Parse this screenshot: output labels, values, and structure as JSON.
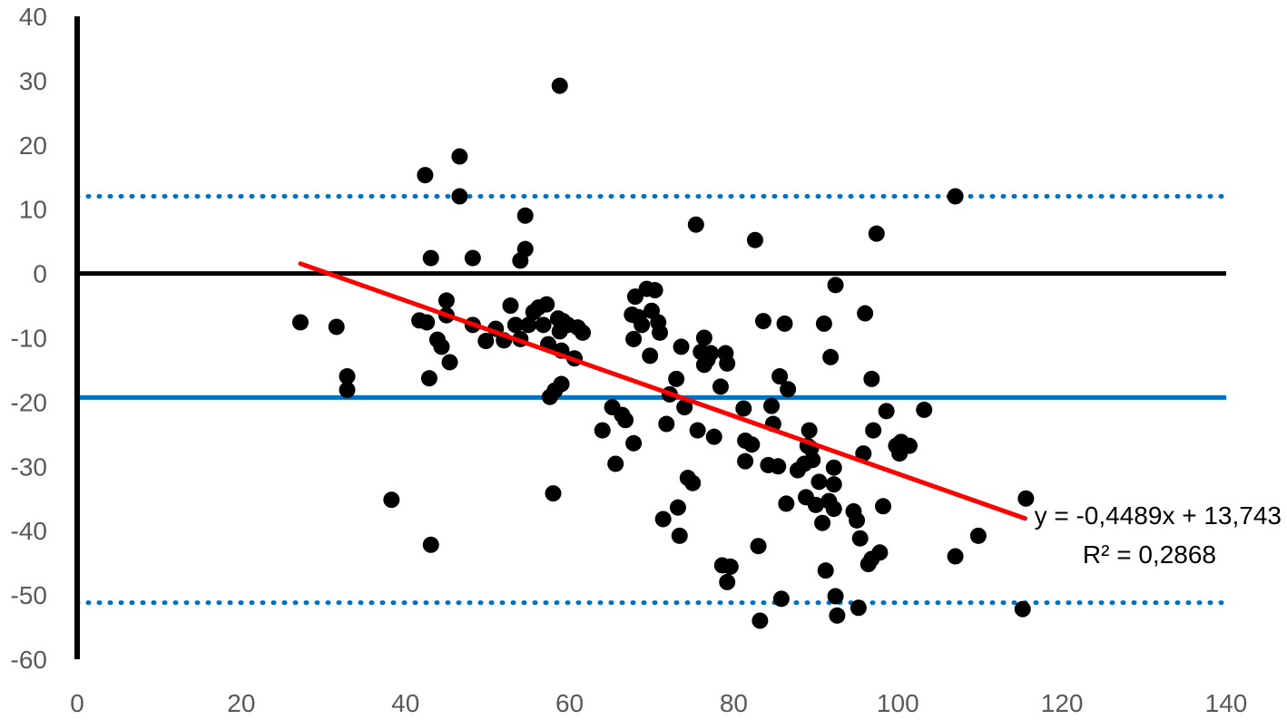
{
  "chart_data": {
    "type": "scatter",
    "title": "",
    "xlabel": "",
    "ylabel": "",
    "xlim": [
      0,
      140
    ],
    "ylim": [
      -60,
      40
    ],
    "xticks": [
      0,
      20,
      40,
      60,
      80,
      100,
      120,
      140
    ],
    "yticks": [
      40,
      30,
      20,
      10,
      0,
      -10,
      -20,
      -30,
      -40,
      -50,
      -60
    ],
    "grid": false,
    "legend": "none",
    "colors": {
      "points": "#000000",
      "trend": "#ff0000",
      "mean_line": "#0070c0",
      "limit_lines": "#0070c0",
      "zero_line": "#000000",
      "tick_text": "#595959"
    },
    "reference_lines": {
      "zero": 0,
      "mean": -19.3,
      "upper_limit": 12,
      "lower_limit": -51.2
    },
    "trendline": {
      "slope": -0.4489,
      "intercept": 13.743,
      "x_range": [
        27.2,
        115.5
      ],
      "equation_label": "y = -0,4489x + 13,743",
      "r2_label": "R² = 0,2868"
    },
    "points": [
      [
        27.2,
        -7.6
      ],
      [
        31.6,
        -8.3
      ],
      [
        32.9,
        -16.0
      ],
      [
        32.9,
        -18.1
      ],
      [
        38.3,
        -35.2
      ],
      [
        41.7,
        -7.3
      ],
      [
        42.4,
        15.3
      ],
      [
        42.6,
        -7.6
      ],
      [
        42.9,
        -16.3
      ],
      [
        43.1,
        2.4
      ],
      [
        43.1,
        -42.2
      ],
      [
        43.9,
        -10.3
      ],
      [
        44.4,
        -11.4
      ],
      [
        45.0,
        -4.2
      ],
      [
        45.0,
        -6.5
      ],
      [
        45.4,
        -13.8
      ],
      [
        46.6,
        18.2
      ],
      [
        46.6,
        12.0
      ],
      [
        48.2,
        2.4
      ],
      [
        48.2,
        -8.0
      ],
      [
        49.8,
        -10.5
      ],
      [
        51.0,
        -8.6
      ],
      [
        52.0,
        -10.4
      ],
      [
        52.8,
        -5.0
      ],
      [
        53.4,
        -8.0
      ],
      [
        54.0,
        2.0
      ],
      [
        54.0,
        -10.2
      ],
      [
        54.6,
        9.0
      ],
      [
        54.6,
        3.8
      ],
      [
        55.0,
        -8.0
      ],
      [
        55.6,
        -6.0
      ],
      [
        56.2,
        -5.3
      ],
      [
        56.8,
        -8.0
      ],
      [
        57.2,
        -4.8
      ],
      [
        57.4,
        -11.0
      ],
      [
        57.6,
        -19.2
      ],
      [
        58.0,
        -34.2
      ],
      [
        58.2,
        -18.2
      ],
      [
        58.6,
        -7.0
      ],
      [
        58.8,
        -9.0
      ],
      [
        59.0,
        -12.0
      ],
      [
        59.0,
        -17.2
      ],
      [
        59.2,
        -7.4
      ],
      [
        58.8,
        29.2
      ],
      [
        59.8,
        -8.0
      ],
      [
        60.6,
        -13.2
      ],
      [
        61.0,
        -8.4
      ],
      [
        61.6,
        -9.2
      ],
      [
        64.0,
        -24.4
      ],
      [
        65.2,
        -20.8
      ],
      [
        65.6,
        -29.6
      ],
      [
        66.4,
        -22.0
      ],
      [
        66.8,
        -22.8
      ],
      [
        67.6,
        -6.4
      ],
      [
        67.8,
        -10.2
      ],
      [
        67.8,
        -26.4
      ],
      [
        68.0,
        -3.6
      ],
      [
        68.4,
        -6.8
      ],
      [
        68.8,
        -8.0
      ],
      [
        69.4,
        -2.4
      ],
      [
        69.8,
        -12.8
      ],
      [
        70.0,
        -5.8
      ],
      [
        70.4,
        -2.6
      ],
      [
        70.8,
        -7.6
      ],
      [
        71.0,
        -9.2
      ],
      [
        71.4,
        -38.2
      ],
      [
        71.8,
        -23.4
      ],
      [
        72.2,
        -18.8
      ],
      [
        73.0,
        -16.4
      ],
      [
        73.2,
        -36.4
      ],
      [
        73.4,
        -40.8
      ],
      [
        73.6,
        -11.4
      ],
      [
        74.0,
        -20.8
      ],
      [
        74.4,
        -31.8
      ],
      [
        75.0,
        -32.6
      ],
      [
        75.4,
        7.6
      ],
      [
        75.6,
        -24.4
      ],
      [
        76.0,
        -12.2
      ],
      [
        76.4,
        -10.0
      ],
      [
        76.4,
        -14.2
      ],
      [
        76.8,
        -13.4
      ],
      [
        77.2,
        -12.4
      ],
      [
        77.6,
        -25.4
      ],
      [
        78.4,
        -17.6
      ],
      [
        78.6,
        -45.4
      ],
      [
        79.0,
        -12.4
      ],
      [
        79.2,
        -14.0
      ],
      [
        79.2,
        -48.0
      ],
      [
        79.6,
        -45.6
      ],
      [
        81.2,
        -21.0
      ],
      [
        81.4,
        -26.0
      ],
      [
        81.4,
        -29.2
      ],
      [
        82.2,
        -26.6
      ],
      [
        82.6,
        5.2
      ],
      [
        83.0,
        -42.4
      ],
      [
        83.2,
        -54.0
      ],
      [
        83.6,
        -7.4
      ],
      [
        84.2,
        -29.8
      ],
      [
        84.6,
        -20.6
      ],
      [
        84.8,
        -23.4
      ],
      [
        85.4,
        -30.0
      ],
      [
        85.6,
        -16.0
      ],
      [
        85.8,
        -50.6
      ],
      [
        86.2,
        -7.8
      ],
      [
        86.4,
        -35.8
      ],
      [
        86.6,
        -18.0
      ],
      [
        87.8,
        -30.6
      ],
      [
        88.6,
        -29.6
      ],
      [
        88.8,
        -34.8
      ],
      [
        89.0,
        -26.8
      ],
      [
        89.2,
        -24.4
      ],
      [
        89.4,
        -27.2
      ],
      [
        89.6,
        -29.0
      ],
      [
        90.0,
        -36.0
      ],
      [
        90.4,
        -32.4
      ],
      [
        90.8,
        -38.8
      ],
      [
        91.0,
        -7.8
      ],
      [
        91.2,
        -46.2
      ],
      [
        91.6,
        -35.4
      ],
      [
        91.8,
        -13.0
      ],
      [
        92.2,
        -30.2
      ],
      [
        92.2,
        -32.8
      ],
      [
        92.2,
        -36.6
      ],
      [
        92.4,
        -50.2
      ],
      [
        92.4,
        -1.8
      ],
      [
        92.6,
        -53.2
      ],
      [
        94.6,
        -37.0
      ],
      [
        95.0,
        -38.4
      ],
      [
        95.2,
        -52.0
      ],
      [
        95.4,
        -41.2
      ],
      [
        95.8,
        -28.0
      ],
      [
        96.0,
        -6.2
      ],
      [
        96.4,
        -45.2
      ],
      [
        96.8,
        -44.4
      ],
      [
        96.8,
        -16.4
      ],
      [
        97.0,
        -24.4
      ],
      [
        97.4,
        6.2
      ],
      [
        97.8,
        -43.4
      ],
      [
        98.2,
        -36.2
      ],
      [
        98.6,
        -21.4
      ],
      [
        99.8,
        -26.8
      ],
      [
        100.2,
        -28.0
      ],
      [
        100.4,
        -26.2
      ],
      [
        101.4,
        -26.8
      ],
      [
        103.2,
        -21.2
      ],
      [
        107.0,
        12.0
      ],
      [
        107.0,
        -44.0
      ],
      [
        109.8,
        -40.8
      ],
      [
        115.2,
        -52.2
      ],
      [
        115.6,
        -35.0
      ]
    ]
  }
}
